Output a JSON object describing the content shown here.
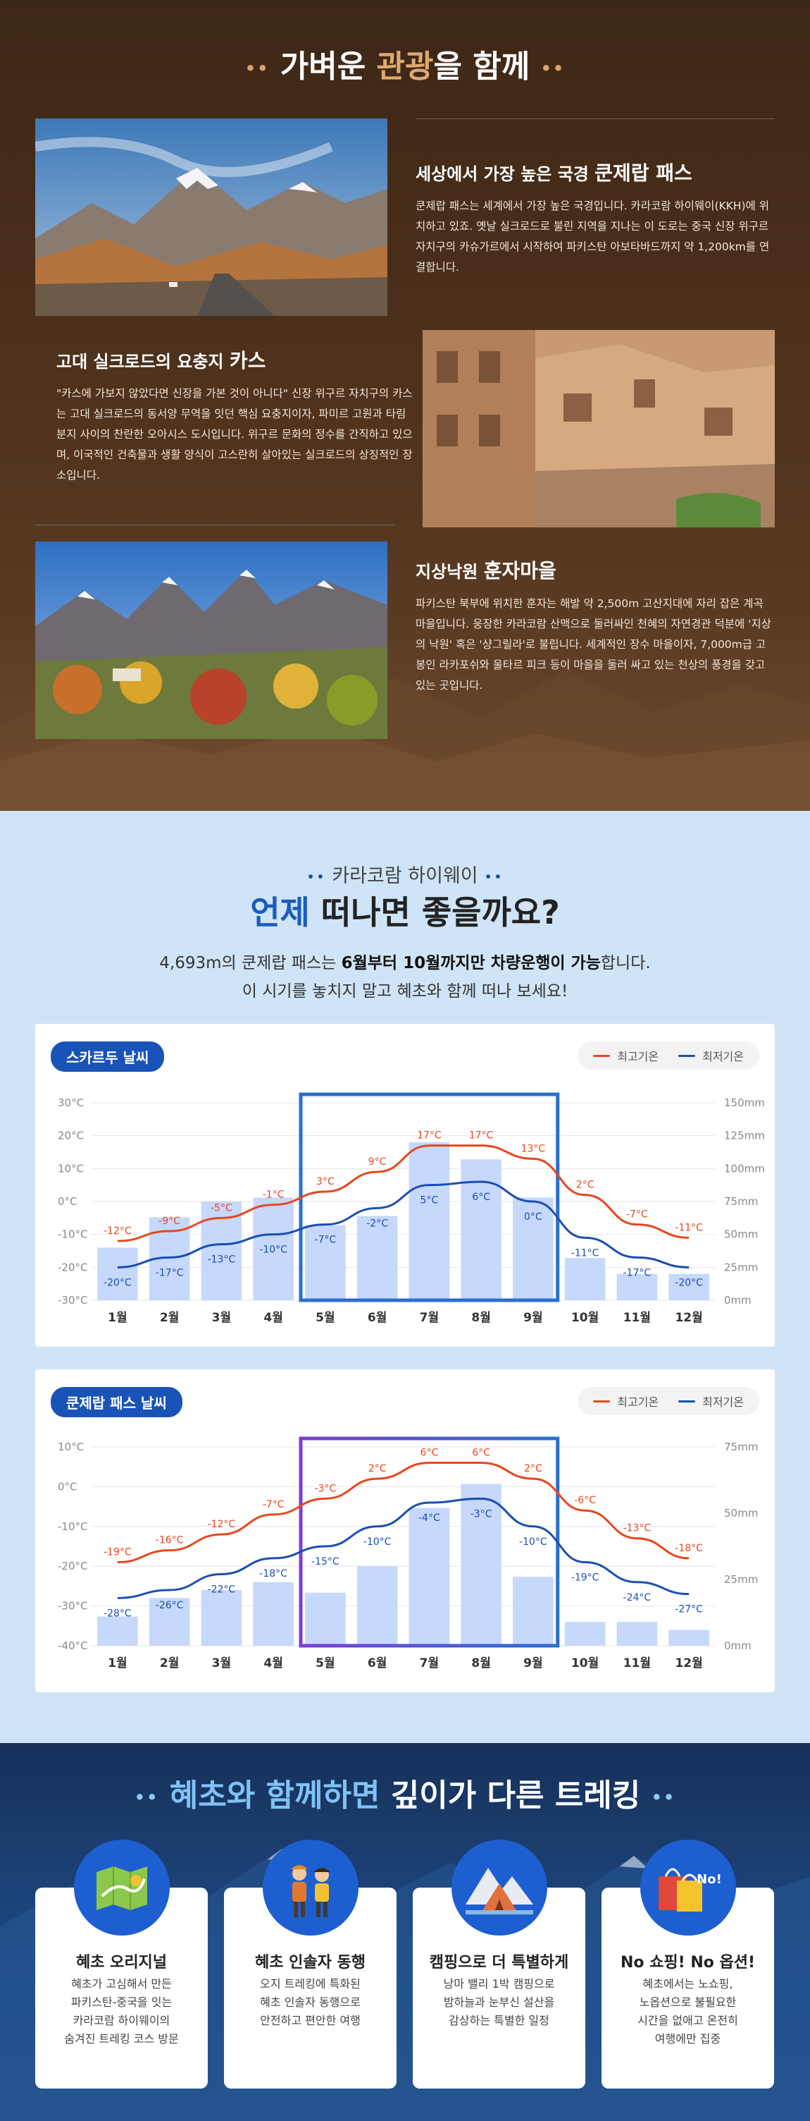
{
  "section1": {
    "title_pre": "가벼운 ",
    "title_hl": "관광",
    "title_post": "을 함께",
    "features": [
      {
        "title_pre": "세상에서 가장 높은 국경 ",
        "title_big": "쿤제랍 패스",
        "desc": "쿤제랍 패스는 세계에서 가장 높은 국경입니다. 카라코람 하이웨이(KKH)에 위치하고 있죠. 옛날 실크로드로 불린 지역을 지나는 이 도로는 중국 신장 위구르 자치구의 카슈가르에서 시작하여 파키스탄 아보타바드까지 약 1,200km를 연결합니다."
      },
      {
        "title_pre": "고대 실크로드의 요충지 ",
        "title_big": "카스",
        "desc": "\"카스에 가보지 않았다면 신장을 가본 것이 아니다\" 신장 위구르 자치구의 카스는 고대 실크로드의 동서양 무역을 잇던 핵심 요충지이자, 파미르 고원과 타림 분지 사이의 찬란한 오아시스 도시입니다. 위구르 문화의 정수를 간직하고 있으며, 이국적인 건축물과 생활 양식이 고스란히 살아있는 실크로드의 상징적인 장소입니다."
      },
      {
        "title_pre": "지상낙원 ",
        "title_big": "훈자마을",
        "desc": "파키스탄 북부에 위치한 훈자는 해발 약 2,500m 고산지대에 자리 잡은 계곡 마을입니다. 웅장한 카라코람 산맥으로 둘러싸인 천혜의 자연경관 덕분에 '지상의 낙원' 혹은 '샹그릴라'로 불립니다. 세계적인 장수 마을이자, 7,000m급 고봉인 라카포쉬와 울타르 피크 등이 마을을 둘러 싸고 있는 천상의 풍경을 갖고 있는 곳입니다."
      }
    ]
  },
  "section2": {
    "subtitle": "카라코람 하이웨이",
    "title_hl": "언제",
    "title_post": " 떠나면 좋을까요?",
    "desc_line1_pre": "4,693m의 쿤제랍 패스는 ",
    "desc_line1_bold": "6월부터 10월까지만 차량운행이 가능",
    "desc_line1_post": "합니다.",
    "desc_line2": "이 시기를 놓치지 말고 혜초와 함께 떠나 보세요!"
  },
  "legend": {
    "high": "최고기온",
    "low": "최저기온"
  },
  "colors": {
    "high": "#e8461f",
    "low": "#1a4fb0",
    "bar": "#c6d8fb",
    "highlight_a": "#2a6fd0",
    "highlight_b": "#7a3fd0"
  },
  "chart_data": [
    {
      "type": "bar",
      "title": "스카르두 날씨",
      "categories": [
        "1월",
        "2월",
        "3월",
        "4월",
        "5월",
        "6월",
        "7월",
        "8월",
        "9월",
        "10월",
        "11월",
        "12월"
      ],
      "y_ticks": [
        "30°C",
        "20°C",
        "10°C",
        "0°C",
        "-10°C",
        "-20°C",
        "-30°C"
      ],
      "ylim": [
        -30,
        30
      ],
      "y2_ticks": [
        "150mm",
        "125mm",
        "100mm",
        "75mm",
        "50mm",
        "25mm",
        "0mm"
      ],
      "y2lim": [
        0,
        150
      ],
      "series": [
        {
          "name": "최고기온",
          "type": "line",
          "values": [
            -12,
            -9,
            -5,
            -1,
            3,
            9,
            17,
            17,
            13,
            2,
            -7,
            -11
          ],
          "labels": [
            "-12°C",
            "-9°C",
            "-5°C",
            "-1°C",
            "3°C",
            "9°C",
            "17°C",
            "17°C",
            "13°C",
            "2°C",
            "-7°C",
            "-11°C"
          ]
        },
        {
          "name": "최저기온",
          "type": "line",
          "values": [
            -20,
            -17,
            -13,
            -10,
            -7,
            -2,
            5,
            6,
            0,
            -11,
            -17,
            -20
          ],
          "labels": [
            "-20°C",
            "-17°C",
            "-13°C",
            "-10°C",
            "-7°C",
            "-2°C",
            "5°C",
            "6°C",
            "0°C",
            "-11°C",
            "-17°C",
            "-20°C"
          ]
        },
        {
          "type": "bar",
          "axis": "right",
          "values": [
            40,
            63,
            75,
            78,
            57,
            64,
            120,
            107,
            78,
            32,
            20,
            20
          ]
        }
      ],
      "highlight_range": [
        "5월",
        "9월"
      ]
    },
    {
      "type": "bar",
      "title": "쿤제랍 패스 날씨",
      "categories": [
        "1월",
        "2월",
        "3월",
        "4월",
        "5월",
        "6월",
        "7월",
        "8월",
        "9월",
        "10월",
        "11월",
        "12월"
      ],
      "y_ticks": [
        "10°C",
        "0°C",
        "-10°C",
        "-20°C",
        "-30°C",
        "-40°C"
      ],
      "ylim": [
        -40,
        10
      ],
      "y2_ticks": [
        "75mm",
        "50mm",
        "25mm",
        "0mm"
      ],
      "y2lim": [
        0,
        75
      ],
      "series": [
        {
          "name": "최고기온",
          "type": "line",
          "values": [
            -19,
            -16,
            -12,
            -7,
            -3,
            2,
            6,
            6,
            2,
            -6,
            -13,
            -18
          ],
          "labels": [
            "-19°C",
            "-16°C",
            "-12°C",
            "-7°C",
            "-3°C",
            "2°C",
            "6°C",
            "6°C",
            "2°C",
            "-6°C",
            "-13°C",
            "-18°C"
          ]
        },
        {
          "name": "최저기온",
          "type": "line",
          "values": [
            -28,
            -26,
            -22,
            -18,
            -15,
            -10,
            -4,
            -3,
            -10,
            -19,
            -24,
            -27
          ],
          "labels": [
            "-28°C",
            "-26°C",
            "-22°C",
            "-18°C",
            "-15°C",
            "-10°C",
            "-4°C",
            "-3°C",
            "-10°C",
            "-19°C",
            "-24°C",
            "-27°C"
          ]
        },
        {
          "type": "bar",
          "axis": "right",
          "values": [
            11,
            18,
            21,
            24,
            20,
            30,
            52,
            61,
            26,
            9,
            9,
            6
          ]
        }
      ],
      "highlight_range": [
        "5월",
        "9월"
      ]
    }
  ],
  "section3": {
    "title_hl": "혜초와 함께하면",
    "title_post": " 깊이가 다른 트레킹",
    "benefits": [
      {
        "icon": "map-icon",
        "name": "혜초 오리지널",
        "desc": [
          "혜초가 고심해서 만든",
          "파키스탄-중국을 잇는",
          "카라코람 하이웨이의",
          "숨겨진 트레킹 코스 방문"
        ]
      },
      {
        "icon": "guides-icon",
        "name": "혜초 인솔자 동행",
        "desc": [
          "오지 트레킹에 특화된",
          "혜초 인솔자 동행으로",
          "안전하고 편안한 여행"
        ]
      },
      {
        "icon": "tent-icon",
        "name": "캠핑으로 더 특별하게",
        "desc": [
          "낭마 밸리 1박 캠핑으로",
          "밤하늘과 눈부신 설산을",
          "감상하는 특별한 일정"
        ]
      },
      {
        "icon": "shopping-bag-icon",
        "name": "No 쇼핑! No 옵션!",
        "badge": "No!",
        "desc": [
          "혜초에서는 노쇼핑,",
          "노옵션으로 불필요한",
          "시간을 없애고 온전히",
          "여행에만 집중"
        ]
      }
    ]
  }
}
